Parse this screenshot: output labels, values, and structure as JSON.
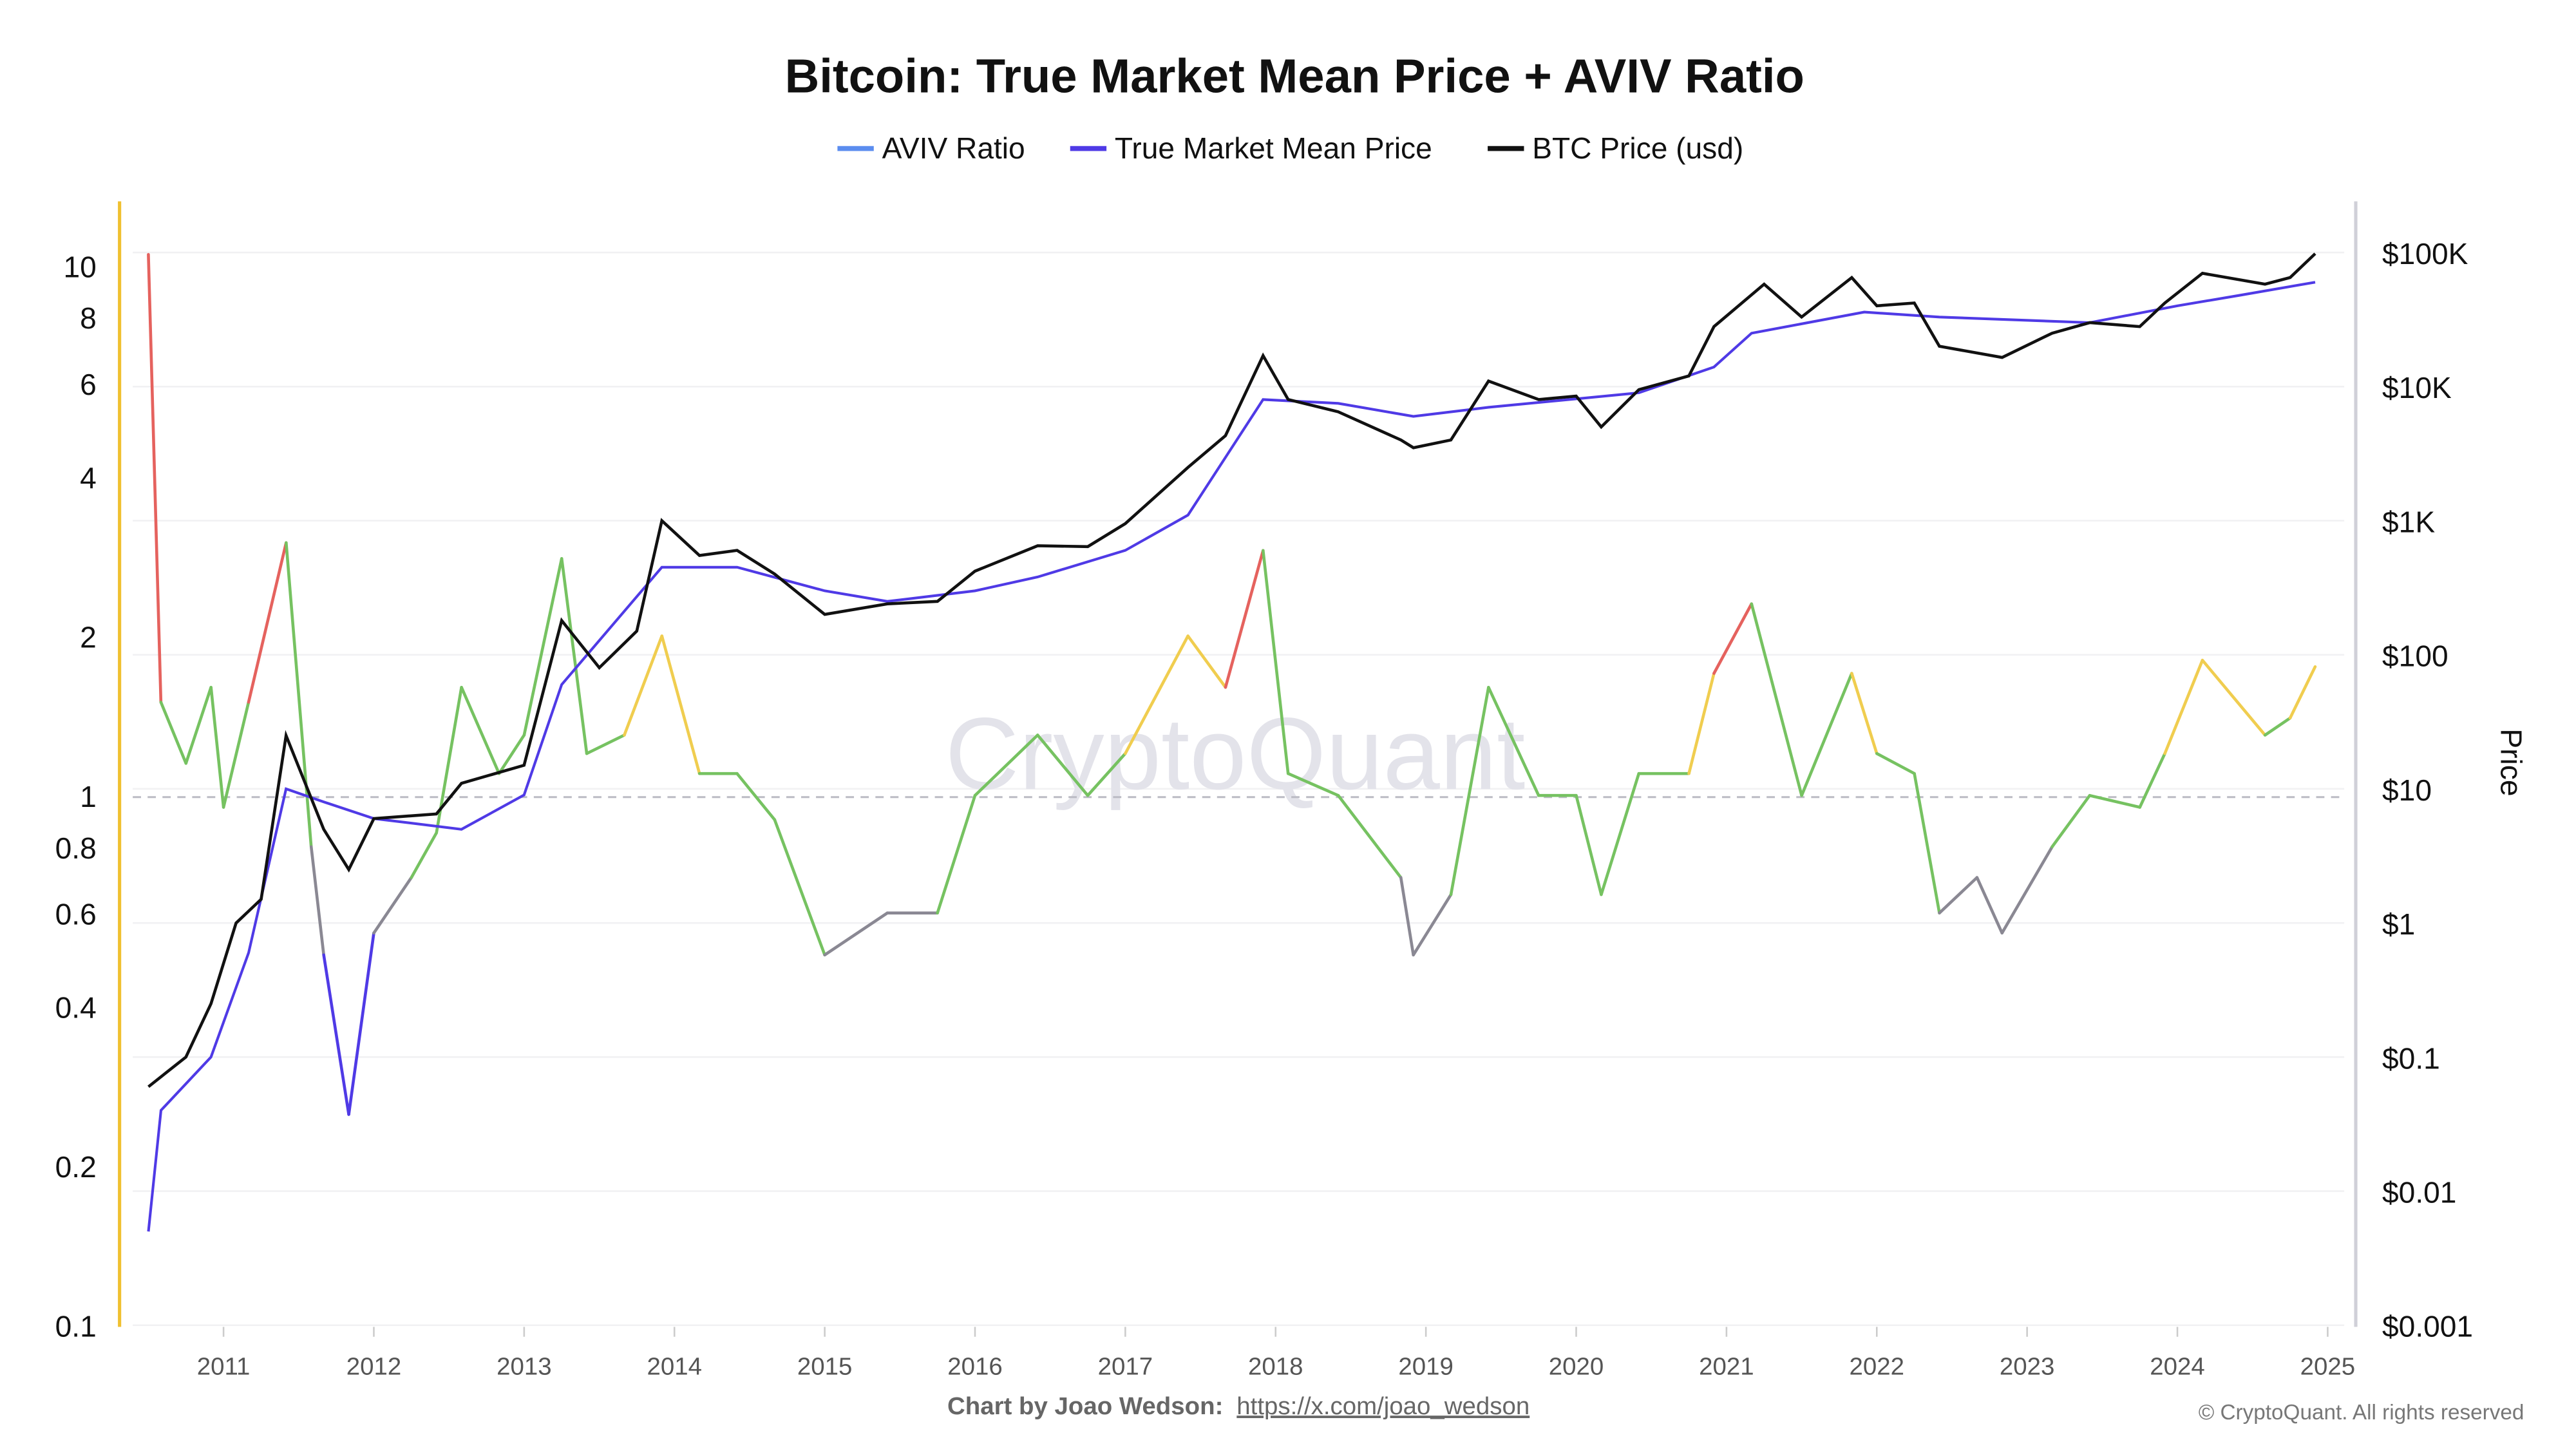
{
  "chart_data": {
    "type": "line",
    "title": "Bitcoin: True Market Mean Price + AVIV Ratio",
    "legend": {
      "placement": "top-center",
      "entries": [
        {
          "label": "AVIV Ratio",
          "color": "#5b8def"
        },
        {
          "label": "True Market Mean Price",
          "color": "#4f3ae6"
        },
        {
          "label": "BTC Price (usd)",
          "color": "#111111"
        }
      ]
    },
    "left_axis": {
      "scale": "log",
      "range": [
        0.1,
        12
      ],
      "ticks": [
        "10",
        "8",
        "6",
        "4",
        "2",
        "1",
        "0.8",
        "0.6",
        "0.4",
        "0.2",
        "0.1"
      ],
      "reference_line": 1
    },
    "right_axis": {
      "label": "Price",
      "scale": "log",
      "range": [
        0.001,
        100000
      ],
      "ticks": [
        "$100K",
        "$10K",
        "$1K",
        "$100",
        "$10",
        "$1",
        "$0.1",
        "$0.01",
        "$0.001"
      ]
    },
    "x_axis": {
      "ticks": [
        "2011",
        "2012",
        "2013",
        "2014",
        "2015",
        "2016",
        "2017",
        "2018",
        "2019",
        "2020",
        "2021",
        "2022",
        "2023",
        "2024",
        "2025"
      ]
    },
    "grid": true,
    "aviv_color_bands": [
      {
        "min": 2.0,
        "color": "#e5625e"
      },
      {
        "min": 1.4,
        "color": "#f0cd4f"
      },
      {
        "min": 0.7,
        "color": "#76c261"
      },
      {
        "min": 0.5,
        "color": "#8a8893"
      },
      {
        "min": 0,
        "color": "#4f3ae6"
      }
    ],
    "series": [
      {
        "name": "AVIV Ratio",
        "axis": "left",
        "points": [
          [
            "2010-07",
            10.5
          ],
          [
            "2010-08",
            1.5
          ],
          [
            "2010-10",
            1.15
          ],
          [
            "2010-12",
            1.6
          ],
          [
            "2011-01",
            0.95
          ],
          [
            "2011-03",
            1.5
          ],
          [
            "2011-06",
            3.0
          ],
          [
            "2011-08",
            0.8
          ],
          [
            "2011-09",
            0.5
          ],
          [
            "2011-11",
            0.25
          ],
          [
            "2012-01",
            0.55
          ],
          [
            "2012-04",
            0.7
          ],
          [
            "2012-06",
            0.85
          ],
          [
            "2012-08",
            1.6
          ],
          [
            "2012-11",
            1.1
          ],
          [
            "2013-01",
            1.3
          ],
          [
            "2013-04",
            2.8
          ],
          [
            "2013-06",
            1.2
          ],
          [
            "2013-09",
            1.3
          ],
          [
            "2013-12",
            2.0
          ],
          [
            "2014-03",
            1.1
          ],
          [
            "2014-06",
            1.1
          ],
          [
            "2014-09",
            0.9
          ],
          [
            "2015-01",
            0.5
          ],
          [
            "2015-06",
            0.6
          ],
          [
            "2015-10",
            0.6
          ],
          [
            "2016-01",
            1.0
          ],
          [
            "2016-06",
            1.3
          ],
          [
            "2016-10",
            1.0
          ],
          [
            "2017-01",
            1.2
          ],
          [
            "2017-06",
            2.0
          ],
          [
            "2017-09",
            1.6
          ],
          [
            "2017-12",
            2.9
          ],
          [
            "2018-02",
            1.1
          ],
          [
            "2018-06",
            1.0
          ],
          [
            "2018-11",
            0.7
          ],
          [
            "2018-12",
            0.5
          ],
          [
            "2019-03",
            0.65
          ],
          [
            "2019-06",
            1.6
          ],
          [
            "2019-10",
            1.0
          ],
          [
            "2020-01",
            1.0
          ],
          [
            "2020-03",
            0.65
          ],
          [
            "2020-06",
            1.1
          ],
          [
            "2020-10",
            1.1
          ],
          [
            "2020-12",
            1.7
          ],
          [
            "2021-03",
            2.3
          ],
          [
            "2021-07",
            1.0
          ],
          [
            "2021-11",
            1.7
          ],
          [
            "2022-01",
            1.2
          ],
          [
            "2022-04",
            1.1
          ],
          [
            "2022-06",
            0.6
          ],
          [
            "2022-09",
            0.7
          ],
          [
            "2022-11",
            0.55
          ],
          [
            "2023-03",
            0.8
          ],
          [
            "2023-06",
            1.0
          ],
          [
            "2023-10",
            0.95
          ],
          [
            "2023-12",
            1.2
          ],
          [
            "2024-03",
            1.8
          ],
          [
            "2024-08",
            1.3
          ],
          [
            "2024-10",
            1.4
          ],
          [
            "2024-12",
            1.75
          ]
        ]
      },
      {
        "name": "True Market Mean Price",
        "axis": "right",
        "points": [
          [
            "2010-07",
            0.005
          ],
          [
            "2010-08",
            0.04
          ],
          [
            "2010-12",
            0.1
          ],
          [
            "2011-03",
            0.6
          ],
          [
            "2011-06",
            10
          ],
          [
            "2011-09",
            8
          ],
          [
            "2012-01",
            6
          ],
          [
            "2012-08",
            5
          ],
          [
            "2013-01",
            9
          ],
          [
            "2013-04",
            60
          ],
          [
            "2013-12",
            450
          ],
          [
            "2014-06",
            450
          ],
          [
            "2015-01",
            300
          ],
          [
            "2015-06",
            250
          ],
          [
            "2016-01",
            300
          ],
          [
            "2016-06",
            380
          ],
          [
            "2017-01",
            600
          ],
          [
            "2017-06",
            1100
          ],
          [
            "2017-12",
            8000
          ],
          [
            "2018-06",
            7500
          ],
          [
            "2018-12",
            6000
          ],
          [
            "2019-06",
            7000
          ],
          [
            "2020-06",
            9000
          ],
          [
            "2020-12",
            14000
          ],
          [
            "2021-03",
            25000
          ],
          [
            "2021-12",
            36000
          ],
          [
            "2022-06",
            33000
          ],
          [
            "2023-06",
            30000
          ],
          [
            "2024-01",
            40000
          ],
          [
            "2024-06",
            48000
          ],
          [
            "2024-12",
            60000
          ]
        ]
      },
      {
        "name": "BTC Price (usd)",
        "axis": "right",
        "points": [
          [
            "2010-07",
            0.06
          ],
          [
            "2010-10",
            0.1
          ],
          [
            "2010-12",
            0.25
          ],
          [
            "2011-02",
            1
          ],
          [
            "2011-04",
            1.5
          ],
          [
            "2011-06",
            25
          ],
          [
            "2011-09",
            5
          ],
          [
            "2011-11",
            2.5
          ],
          [
            "2012-01",
            6
          ],
          [
            "2012-06",
            6.5
          ],
          [
            "2012-08",
            11
          ],
          [
            "2013-01",
            15
          ],
          [
            "2013-04",
            180
          ],
          [
            "2013-07",
            80
          ],
          [
            "2013-10",
            150
          ],
          [
            "2013-12",
            1000
          ],
          [
            "2014-03",
            550
          ],
          [
            "2014-06",
            600
          ],
          [
            "2014-09",
            400
          ],
          [
            "2015-01",
            200
          ],
          [
            "2015-06",
            240
          ],
          [
            "2015-10",
            250
          ],
          [
            "2016-01",
            420
          ],
          [
            "2016-06",
            650
          ],
          [
            "2016-10",
            640
          ],
          [
            "2017-01",
            950
          ],
          [
            "2017-06",
            2500
          ],
          [
            "2017-09",
            4300
          ],
          [
            "2017-12",
            17000
          ],
          [
            "2018-02",
            8000
          ],
          [
            "2018-06",
            6500
          ],
          [
            "2018-11",
            4000
          ],
          [
            "2018-12",
            3500
          ],
          [
            "2019-03",
            4000
          ],
          [
            "2019-06",
            11000
          ],
          [
            "2019-10",
            8000
          ],
          [
            "2020-01",
            8500
          ],
          [
            "2020-03",
            5000
          ],
          [
            "2020-06",
            9500
          ],
          [
            "2020-10",
            12000
          ],
          [
            "2020-12",
            28000
          ],
          [
            "2021-04",
            58000
          ],
          [
            "2021-07",
            33000
          ],
          [
            "2021-11",
            65000
          ],
          [
            "2022-01",
            40000
          ],
          [
            "2022-04",
            42000
          ],
          [
            "2022-06",
            20000
          ],
          [
            "2022-11",
            16500
          ],
          [
            "2023-03",
            25000
          ],
          [
            "2023-06",
            30000
          ],
          [
            "2023-10",
            28000
          ],
          [
            "2023-12",
            42000
          ],
          [
            "2024-03",
            70000
          ],
          [
            "2024-08",
            58000
          ],
          [
            "2024-10",
            65000
          ],
          [
            "2024-12",
            98000
          ]
        ]
      }
    ]
  },
  "watermark": "CryptoQuant",
  "footer": {
    "credit": "Chart by Joao Wedson:",
    "link": "https://x.com/joao_wedson",
    "copyright": "© CryptoQuant. All rights reserved"
  }
}
